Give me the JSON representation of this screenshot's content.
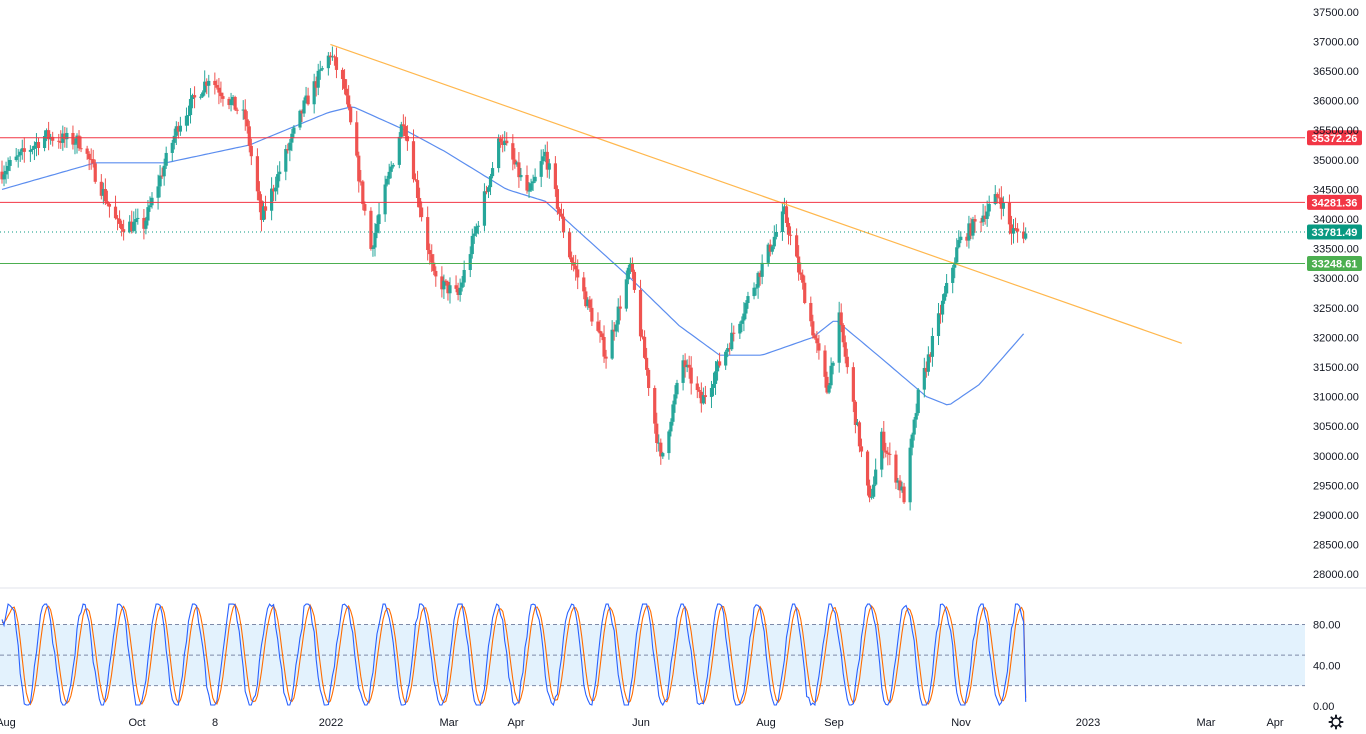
{
  "colors": {
    "up": "#26a69a",
    "down": "#ef5350",
    "ma": "#5b8def",
    "trendline": "#ffb74d",
    "resistance": "#f23645",
    "support": "#4caf50",
    "current": "#089981",
    "stoch_k": "#2962ff",
    "stoch_d": "#ff6d00",
    "stoch_band": "#e3f2fd"
  },
  "icons": {
    "settings": "gear-icon"
  },
  "chart_data": [
    {
      "type": "candlestick",
      "price_axis": {
        "ylim": [
          27800,
          37700
        ],
        "ticks": [
          "37500.00",
          "37000.00",
          "36500.00",
          "36000.00",
          "35500.00",
          "35000.00",
          "34500.00",
          "34000.00",
          "33500.00",
          "33000.00",
          "32500.00",
          "32000.00",
          "31500.00",
          "31000.00",
          "30500.00",
          "30000.00",
          "29500.00",
          "29000.00",
          "28500.00",
          "28000.00"
        ]
      },
      "time_axis": {
        "labels": [
          "Aug",
          "Oct",
          "8",
          "2022",
          "Mar",
          "Apr",
          "Jun",
          "Aug",
          "Sep",
          "Nov",
          "2023",
          "Mar",
          "Apr"
        ]
      },
      "series": [
        {
          "kind": "candles",
          "anchors": [
            [
              "2021-07-26",
              34800
            ],
            [
              "2021-08-16",
              35400
            ],
            [
              "2021-09-03",
              35300
            ],
            [
              "2021-09-21",
              33900
            ],
            [
              "2021-10-04",
              33900
            ],
            [
              "2021-10-21",
              35600
            ],
            [
              "2021-11-05",
              36400
            ],
            [
              "2021-11-23",
              35700
            ],
            [
              "2021-12-01",
              34000
            ],
            [
              "2021-12-22",
              35900
            ],
            [
              "2022-01-04",
              36800
            ],
            [
              "2022-01-11",
              36200
            ],
            [
              "2022-01-24",
              33500
            ],
            [
              "2022-02-09",
              35700
            ],
            [
              "2022-02-24",
              33000
            ],
            [
              "2022-03-08",
              32700
            ],
            [
              "2022-03-29",
              35400
            ],
            [
              "2022-04-12",
              34400
            ],
            [
              "2022-04-20",
              35100
            ],
            [
              "2022-05-02",
              33400
            ],
            [
              "2022-05-20",
              31700
            ],
            [
              "2022-06-01",
              33200
            ],
            [
              "2022-06-16",
              29900
            ],
            [
              "2022-06-27",
              31600
            ],
            [
              "2022-07-06",
              30900
            ],
            [
              "2022-07-21",
              32000
            ],
            [
              "2022-08-16",
              34100
            ],
            [
              "2022-08-24",
              33000
            ],
            [
              "2022-09-06",
              31100
            ],
            [
              "2022-09-12",
              32300
            ],
            [
              "2022-09-27",
              29200
            ],
            [
              "2022-10-03",
              30300
            ],
            [
              "2022-10-14",
              29300
            ],
            [
              "2022-10-21",
              31000
            ],
            [
              "2022-11-10",
              33600
            ],
            [
              "2022-11-30",
              34400
            ],
            [
              "2022-12-06",
              33800
            ],
            [
              "2022-12-13",
              33750
            ]
          ]
        },
        {
          "kind": "moving_average",
          "anchors": [
            [
              "2021-07-26",
              34500
            ],
            [
              "2021-09-10",
              34950
            ],
            [
              "2021-10-15",
              34950
            ],
            [
              "2021-11-25",
              35250
            ],
            [
              "2022-01-03",
              35800
            ],
            [
              "2022-01-15",
              35900
            ],
            [
              "2022-02-10",
              35500
            ],
            [
              "2022-03-01",
              35150
            ],
            [
              "2022-04-01",
              34500
            ],
            [
              "2022-04-20",
              34300
            ],
            [
              "2022-06-01",
              33000
            ],
            [
              "2022-06-25",
              32200
            ],
            [
              "2022-07-15",
              31700
            ],
            [
              "2022-08-05",
              31700
            ],
            [
              "2022-08-30",
              32000
            ],
            [
              "2022-09-10",
              32300
            ],
            [
              "2022-10-01",
              31700
            ],
            [
              "2022-10-25",
              31000
            ],
            [
              "2022-11-05",
              30850
            ],
            [
              "2022-11-20",
              31200
            ],
            [
              "2022-12-13",
              32100
            ]
          ]
        },
        {
          "kind": "trendline",
          "start": [
            "2022-01-04",
            36950
          ],
          "end": [
            "2023-02-28",
            31900
          ]
        }
      ],
      "horizontal_lines": [
        {
          "role": "resistance",
          "value": 35372.26,
          "label": "35372.26"
        },
        {
          "role": "resistance",
          "value": 34281.36,
          "label": "34281.36"
        },
        {
          "role": "support",
          "value": 33248.61,
          "label": "33248.61"
        },
        {
          "role": "current_price",
          "value": 33781.49,
          "label": "33781.49"
        }
      ]
    },
    {
      "type": "line",
      "indicator": "stochastic",
      "ylim": [
        0,
        108
      ],
      "ticks": [
        "80.00",
        "40.00",
        "0.00"
      ],
      "band": [
        20,
        80
      ],
      "midline": 50,
      "series": [
        {
          "role": "k",
          "anchors": [
            [
              "2021-07-26",
              85
            ],
            [
              "2022-12-13",
              4
            ]
          ]
        },
        {
          "role": "d",
          "anchors": [
            [
              "2021-07-26",
              82
            ],
            [
              "2022-12-13",
              8
            ]
          ]
        }
      ]
    }
  ]
}
